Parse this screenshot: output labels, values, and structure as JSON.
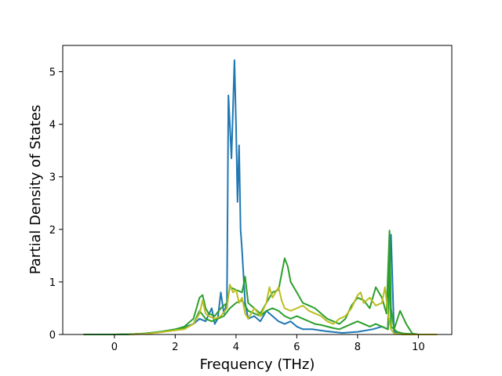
{
  "chart_data": {
    "type": "line",
    "title": "",
    "xlabel": "Frequency (THz)",
    "ylabel": "Partial Density of States",
    "xlim": [
      -1.7,
      11.1
    ],
    "ylim": [
      0,
      5.5
    ],
    "xticks": [
      0,
      2,
      4,
      6,
      8,
      10
    ],
    "yticks": [
      0,
      1,
      2,
      3,
      4,
      5
    ],
    "grid": false,
    "legend": "none",
    "series": [
      {
        "color": "#1f77b4",
        "points": [
          [
            -1.0,
            0
          ],
          [
            0.0,
            0
          ],
          [
            0.5,
            0.005
          ],
          [
            1.0,
            0.02
          ],
          [
            1.5,
            0.05
          ],
          [
            2.0,
            0.1
          ],
          [
            2.3,
            0.14
          ],
          [
            2.6,
            0.2
          ],
          [
            2.8,
            0.3
          ],
          [
            3.0,
            0.25
          ],
          [
            3.2,
            0.5
          ],
          [
            3.3,
            0.2
          ],
          [
            3.4,
            0.3
          ],
          [
            3.5,
            0.8
          ],
          [
            3.6,
            0.4
          ],
          [
            3.7,
            0.6
          ],
          [
            3.75,
            4.55
          ],
          [
            3.85,
            3.35
          ],
          [
            3.95,
            5.22
          ],
          [
            4.0,
            4.0
          ],
          [
            4.05,
            2.52
          ],
          [
            4.1,
            3.6
          ],
          [
            4.15,
            2.0
          ],
          [
            4.2,
            1.6
          ],
          [
            4.3,
            0.6
          ],
          [
            4.4,
            0.3
          ],
          [
            4.6,
            0.35
          ],
          [
            4.8,
            0.25
          ],
          [
            5.0,
            0.45
          ],
          [
            5.2,
            0.35
          ],
          [
            5.4,
            0.25
          ],
          [
            5.6,
            0.2
          ],
          [
            5.8,
            0.25
          ],
          [
            6.0,
            0.15
          ],
          [
            6.2,
            0.1
          ],
          [
            6.5,
            0.1
          ],
          [
            7.0,
            0.06
          ],
          [
            7.5,
            0.03
          ],
          [
            8.0,
            0.05
          ],
          [
            8.5,
            0.1
          ],
          [
            8.8,
            0.15
          ],
          [
            9.0,
            0.1
          ],
          [
            9.1,
            1.9
          ],
          [
            9.2,
            0.05
          ],
          [
            9.5,
            0.02
          ],
          [
            10.0,
            0
          ],
          [
            10.6,
            0
          ]
        ]
      },
      {
        "color": "#2ca02c",
        "points": [
          [
            -1.0,
            0
          ],
          [
            0.0,
            0
          ],
          [
            0.5,
            0.005
          ],
          [
            1.0,
            0.02
          ],
          [
            1.5,
            0.05
          ],
          [
            2.0,
            0.1
          ],
          [
            2.3,
            0.15
          ],
          [
            2.6,
            0.3
          ],
          [
            2.8,
            0.7
          ],
          [
            2.9,
            0.75
          ],
          [
            3.0,
            0.5
          ],
          [
            3.1,
            0.4
          ],
          [
            3.3,
            0.35
          ],
          [
            3.5,
            0.5
          ],
          [
            3.7,
            0.6
          ],
          [
            3.8,
            0.9
          ],
          [
            4.0,
            0.85
          ],
          [
            4.2,
            0.8
          ],
          [
            4.3,
            1.1
          ],
          [
            4.4,
            0.6
          ],
          [
            4.6,
            0.5
          ],
          [
            4.8,
            0.4
          ],
          [
            5.0,
            0.6
          ],
          [
            5.2,
            0.8
          ],
          [
            5.4,
            0.85
          ],
          [
            5.6,
            1.45
          ],
          [
            5.7,
            1.3
          ],
          [
            5.8,
            1.0
          ],
          [
            6.0,
            0.8
          ],
          [
            6.2,
            0.6
          ],
          [
            6.4,
            0.55
          ],
          [
            6.6,
            0.5
          ],
          [
            6.8,
            0.4
          ],
          [
            7.0,
            0.3
          ],
          [
            7.2,
            0.25
          ],
          [
            7.4,
            0.2
          ],
          [
            7.6,
            0.3
          ],
          [
            7.8,
            0.55
          ],
          [
            8.0,
            0.7
          ],
          [
            8.2,
            0.65
          ],
          [
            8.4,
            0.5
          ],
          [
            8.6,
            0.9
          ],
          [
            8.8,
            0.7
          ],
          [
            8.95,
            0.4
          ],
          [
            9.05,
            1.98
          ],
          [
            9.1,
            0.5
          ],
          [
            9.2,
            0.1
          ],
          [
            9.4,
            0.45
          ],
          [
            9.6,
            0.2
          ],
          [
            9.8,
            0.02
          ],
          [
            10.0,
            0
          ],
          [
            10.6,
            0
          ]
        ]
      },
      {
        "color": "#2ca02c",
        "points": [
          [
            -1.0,
            0
          ],
          [
            0.0,
            0
          ],
          [
            0.5,
            0.005
          ],
          [
            1.0,
            0.02
          ],
          [
            1.5,
            0.05
          ],
          [
            2.0,
            0.08
          ],
          [
            2.3,
            0.12
          ],
          [
            2.6,
            0.2
          ],
          [
            2.8,
            0.45
          ],
          [
            3.0,
            0.3
          ],
          [
            3.2,
            0.25
          ],
          [
            3.4,
            0.3
          ],
          [
            3.6,
            0.35
          ],
          [
            3.8,
            0.5
          ],
          [
            4.0,
            0.6
          ],
          [
            4.2,
            0.65
          ],
          [
            4.4,
            0.45
          ],
          [
            4.6,
            0.4
          ],
          [
            4.8,
            0.35
          ],
          [
            5.0,
            0.45
          ],
          [
            5.2,
            0.5
          ],
          [
            5.4,
            0.45
          ],
          [
            5.6,
            0.35
          ],
          [
            5.8,
            0.3
          ],
          [
            6.0,
            0.35
          ],
          [
            6.2,
            0.3
          ],
          [
            6.4,
            0.25
          ],
          [
            6.6,
            0.2
          ],
          [
            6.8,
            0.18
          ],
          [
            7.0,
            0.15
          ],
          [
            7.2,
            0.12
          ],
          [
            7.4,
            0.1
          ],
          [
            7.6,
            0.15
          ],
          [
            7.8,
            0.2
          ],
          [
            8.0,
            0.25
          ],
          [
            8.2,
            0.2
          ],
          [
            8.4,
            0.15
          ],
          [
            8.6,
            0.2
          ],
          [
            8.8,
            0.15
          ],
          [
            9.0,
            0.1
          ],
          [
            9.05,
            1.6
          ],
          [
            9.1,
            0.15
          ],
          [
            9.3,
            0.05
          ],
          [
            9.5,
            0.02
          ],
          [
            10.0,
            0
          ],
          [
            10.6,
            0
          ]
        ]
      },
      {
        "color": "#bcbd22",
        "points": [
          [
            0.5,
            0
          ],
          [
            1.0,
            0.01
          ],
          [
            1.5,
            0.04
          ],
          [
            2.0,
            0.08
          ],
          [
            2.3,
            0.1
          ],
          [
            2.6,
            0.2
          ],
          [
            2.8,
            0.4
          ],
          [
            2.9,
            0.65
          ],
          [
            3.0,
            0.4
          ],
          [
            3.1,
            0.35
          ],
          [
            3.3,
            0.3
          ],
          [
            3.5,
            0.35
          ],
          [
            3.7,
            0.5
          ],
          [
            3.8,
            0.95
          ],
          [
            3.9,
            0.8
          ],
          [
            4.0,
            0.85
          ],
          [
            4.1,
            0.6
          ],
          [
            4.2,
            0.7
          ],
          [
            4.3,
            0.4
          ],
          [
            4.4,
            0.3
          ],
          [
            4.6,
            0.5
          ],
          [
            4.8,
            0.35
          ],
          [
            5.0,
            0.6
          ],
          [
            5.1,
            0.9
          ],
          [
            5.2,
            0.7
          ],
          [
            5.4,
            0.9
          ],
          [
            5.5,
            0.65
          ],
          [
            5.6,
            0.5
          ],
          [
            5.8,
            0.45
          ],
          [
            6.0,
            0.5
          ],
          [
            6.2,
            0.55
          ],
          [
            6.4,
            0.45
          ],
          [
            6.6,
            0.4
          ],
          [
            6.8,
            0.35
          ],
          [
            7.0,
            0.25
          ],
          [
            7.2,
            0.2
          ],
          [
            7.4,
            0.3
          ],
          [
            7.6,
            0.35
          ],
          [
            7.8,
            0.5
          ],
          [
            8.0,
            0.75
          ],
          [
            8.1,
            0.8
          ],
          [
            8.2,
            0.6
          ],
          [
            8.4,
            0.7
          ],
          [
            8.6,
            0.55
          ],
          [
            8.8,
            0.6
          ],
          [
            8.9,
            0.9
          ],
          [
            9.0,
            0.4
          ],
          [
            9.1,
            0.1
          ],
          [
            9.2,
            0.02
          ],
          [
            9.5,
            0
          ],
          [
            10.6,
            0
          ]
        ]
      }
    ]
  }
}
